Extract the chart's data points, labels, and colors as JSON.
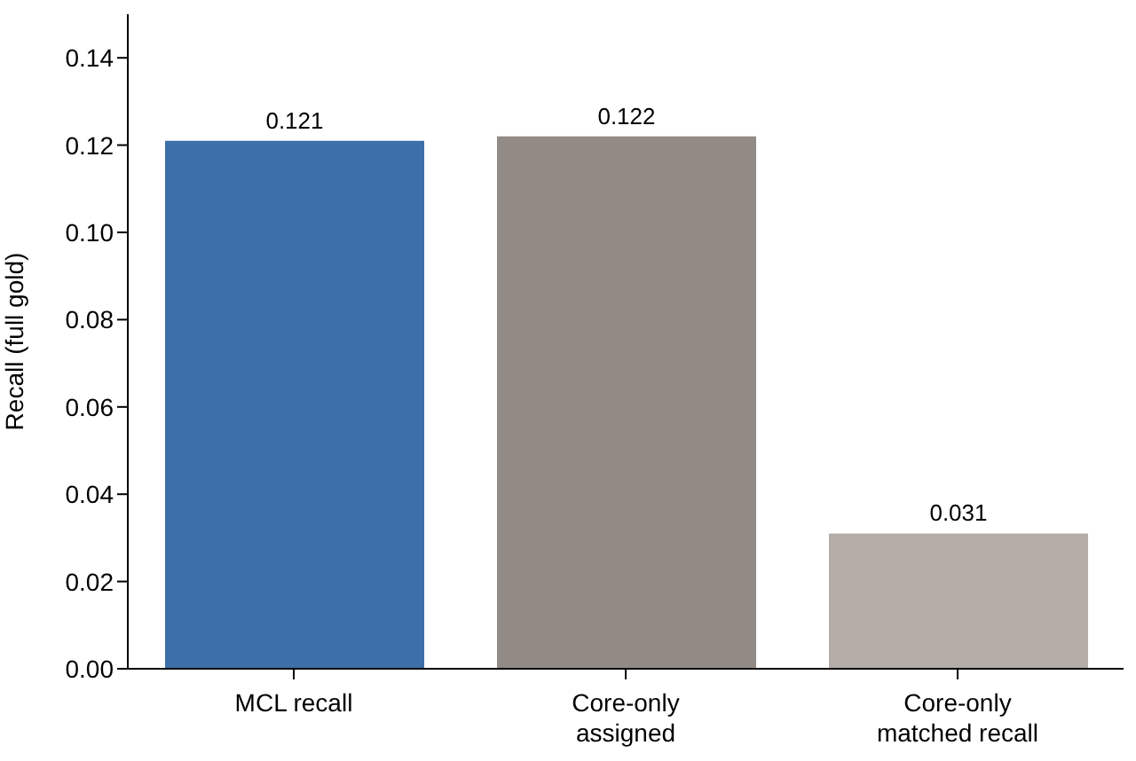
{
  "chart_data": {
    "type": "bar",
    "ylabel": "Recall (full gold)",
    "categories": [
      "MCL recall",
      "Core-only\nassigned",
      "Core-only\nmatched recall"
    ],
    "values": [
      0.121,
      0.122,
      0.031
    ],
    "colors": [
      "#3d6fa8",
      "#928a84",
      "#b3aca7"
    ],
    "ylim": [
      0,
      0.15
    ],
    "yticks": [
      {
        "value": 0,
        "label": "0.00"
      },
      {
        "value": 0.02,
        "label": "0.02"
      },
      {
        "value": 0.04,
        "label": "0.04"
      },
      {
        "value": 0.06,
        "label": "0.06"
      },
      {
        "value": 0.08,
        "label": "0.08"
      },
      {
        "value": 0.1,
        "label": "0.10"
      },
      {
        "value": 0.12,
        "label": "0.12"
      },
      {
        "value": 0.14,
        "label": "0.14"
      }
    ],
    "data_labels": true,
    "grid": false,
    "legend": false
  }
}
